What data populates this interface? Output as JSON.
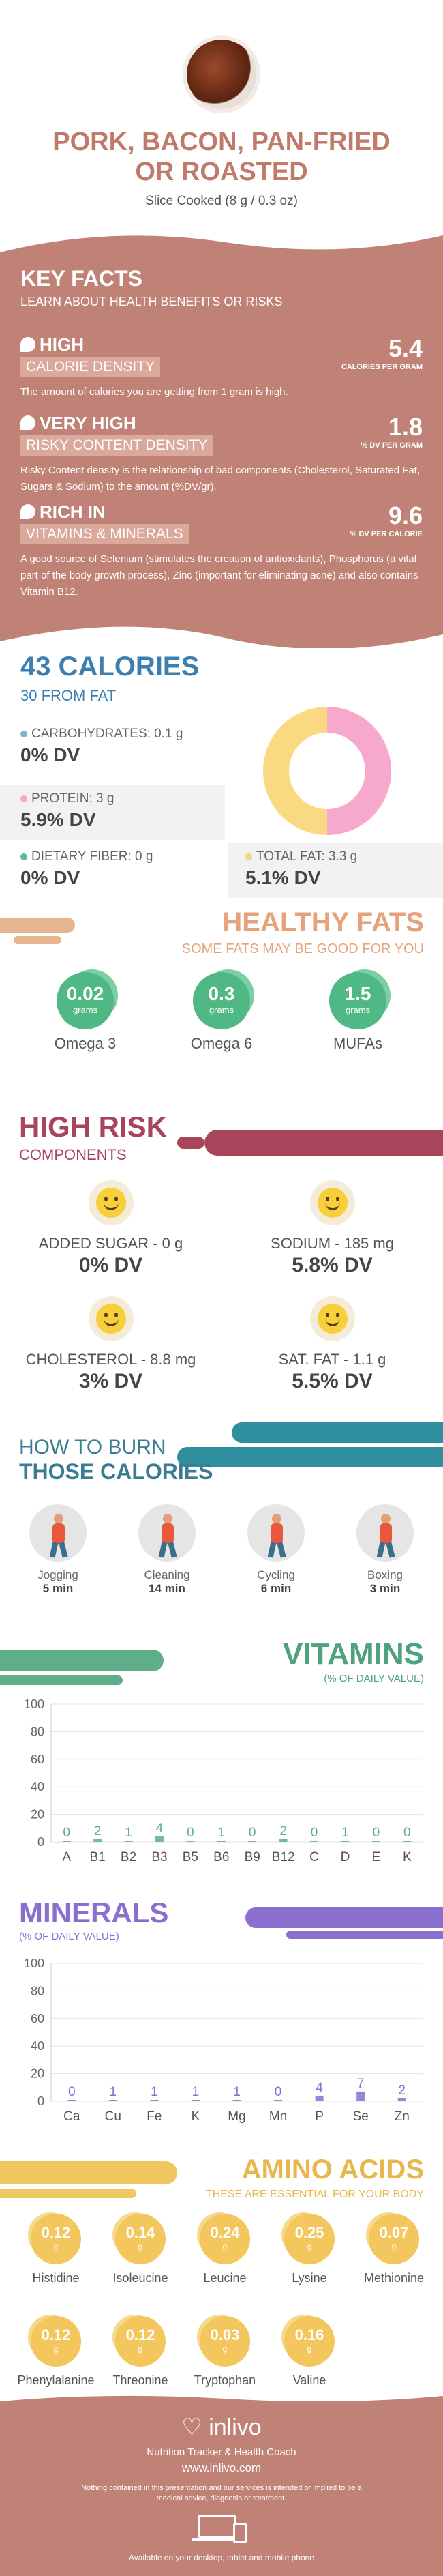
{
  "header": {
    "title_line1": "PORK, BACON, PAN-FRIED",
    "title_line2": "OR ROASTED",
    "serving": "Slice Cooked (8 g / 0.3 oz)"
  },
  "key_facts": {
    "title": "KEY FACTS",
    "subtitle": "LEARN ABOUT HEALTH BENEFITS OR RISKS",
    "items": [
      {
        "level": "HIGH",
        "label": "CALORIE DENSITY",
        "value": "5.4",
        "unit": "CALORIES PER GRAM",
        "desc": "The amount of calories you are getting from 1 gram is high.",
        "icon": "flame-icon"
      },
      {
        "level": "VERY HIGH",
        "label": "RISKY CONTENT DENSITY",
        "value": "1.8",
        "unit": "% DV PER GRAM",
        "desc": "Risky Content density is the relationship of bad components (Cholesterol, Saturated Fat, Sugars & Sodium) to the amount (%DV/gr).",
        "icon": "warning-icon"
      },
      {
        "level": "RICH  IN",
        "label": "VITAMINS & MINERALS",
        "value": "9.6",
        "unit": "% DV PER CALORIE",
        "desc": "A good source of Selenium (stimulates the creation of antioxidants), Phosphorus (a vital part of the body growth process), Zinc (important for eliminating acne) and also contains Vitamin B12.",
        "icon": "leaf-icon"
      }
    ]
  },
  "calories": {
    "title": "43 CALORIES",
    "subtitle": "30 FROM FAT",
    "nutrients": [
      {
        "label": "CARBOHYDRATES: 0.1 g",
        "dv": "0% DV",
        "color": "#7fb3c9"
      },
      {
        "label": "PROTEIN: 3 g",
        "dv": "5.9% DV",
        "color": "#f4a9c8"
      },
      {
        "label": "DIETARY FIBER: 0 g",
        "dv": "0% DV",
        "color": "#5fb89a"
      },
      {
        "label": "TOTAL FAT: 3.3 g",
        "dv": "5.1% DV",
        "color": "#f7d57f"
      }
    ],
    "donut": {
      "protein_fraction": 0.5,
      "fat_fraction": 0.5,
      "protein_color": "#f7a8cd",
      "fat_color": "#f9d982"
    }
  },
  "healthy_fats": {
    "title": "HEALTHY FATS",
    "subtitle": "SOME FATS MAY BE GOOD FOR YOU",
    "items": [
      {
        "value": "0.02",
        "unit": "grams",
        "label": "Omega 3"
      },
      {
        "value": "0.3",
        "unit": "grams",
        "label": "Omega 6"
      },
      {
        "value": "1.5",
        "unit": "grams",
        "label": "MUFAs"
      }
    ]
  },
  "high_risk": {
    "title": "HIGH RISK",
    "subtitle": "COMPONENTS",
    "items": [
      {
        "label": "ADDED SUGAR - 0 g",
        "dv": "0% DV",
        "face": "grin-face-icon"
      },
      {
        "label": "SODIUM - 185 mg",
        "dv": "5.8% DV",
        "face": "smile-face-icon"
      },
      {
        "label": "CHOLESTEROL - 8.8 mg",
        "dv": "3% DV",
        "face": "smile-face-icon"
      },
      {
        "label": "SAT. FAT - 1.1 g",
        "dv": "5.5% DV",
        "face": "smile-face-icon"
      }
    ]
  },
  "burn": {
    "title_line1": "HOW TO BURN",
    "title_line2": "THOSE CALORIES",
    "items": [
      {
        "label": "Jogging",
        "time": "5 min",
        "icon": "jogging-icon"
      },
      {
        "label": "Cleaning",
        "time": "14 min",
        "icon": "cleaning-icon"
      },
      {
        "label": "Cycling",
        "time": "6 min",
        "icon": "cycling-icon"
      },
      {
        "label": "Boxing",
        "time": "3 min",
        "icon": "boxing-icon"
      }
    ]
  },
  "vitamins": {
    "title": "VITAMINS",
    "subtitle": "(% OF DAILY VALUE)"
  },
  "minerals": {
    "title": "MINERALS",
    "subtitle": "(% OF DAILY VALUE)"
  },
  "chart_data": [
    {
      "type": "bar",
      "title": "VITAMINS",
      "categories": [
        "A",
        "B1",
        "B2",
        "B3",
        "B5",
        "B6",
        "B9",
        "B12",
        "C",
        "D",
        "E",
        "K"
      ],
      "values": [
        0,
        2,
        1,
        4,
        0,
        1,
        0,
        2,
        0,
        1,
        0,
        0
      ],
      "ylim": [
        0,
        100
      ],
      "yticks": [
        0,
        20,
        40,
        60,
        80,
        100
      ],
      "color": "#5fae8a"
    },
    {
      "type": "bar",
      "title": "MINERALS",
      "categories": [
        "Ca",
        "Cu",
        "Fe",
        "K",
        "Mg",
        "Mn",
        "P",
        "Se",
        "Zn"
      ],
      "values": [
        0,
        1,
        1,
        1,
        1,
        0,
        4,
        7,
        2
      ],
      "ylim": [
        0,
        100
      ],
      "yticks": [
        0,
        20,
        40,
        60,
        80,
        100
      ],
      "color": "#8a6fd1"
    }
  ],
  "amino": {
    "title": "AMINO ACIDS",
    "subtitle": "THESE ARE ESSENTIAL FOR YOUR BODY",
    "items": [
      {
        "value": "0.12",
        "unit": "g",
        "label": "Histidine"
      },
      {
        "value": "0.14",
        "unit": "g",
        "label": "Isoleucine"
      },
      {
        "value": "0.24",
        "unit": "g",
        "label": "Leucine"
      },
      {
        "value": "0.25",
        "unit": "g",
        "label": "Lysine"
      },
      {
        "value": "0.07",
        "unit": "g",
        "label": "Methionine"
      },
      {
        "value": "0.12",
        "unit": "g",
        "label": "Phenylalanine"
      },
      {
        "value": "0.12",
        "unit": "g",
        "label": "Threonine"
      },
      {
        "value": "0.03",
        "unit": "g",
        "label": "Tryptophan"
      },
      {
        "value": "0.16",
        "unit": "g",
        "label": "Valine"
      }
    ]
  },
  "footer": {
    "brand": "inlivo",
    "tagline": "Nutrition Tracker & Health Coach",
    "url": "www.inlivo.com",
    "disclaimer": "Nothing contained in this presentation and our services is intended or implied to be a medical advice, diagnosis or treatment.",
    "devices": "Available on your desktop, tablet and mobile phone"
  }
}
